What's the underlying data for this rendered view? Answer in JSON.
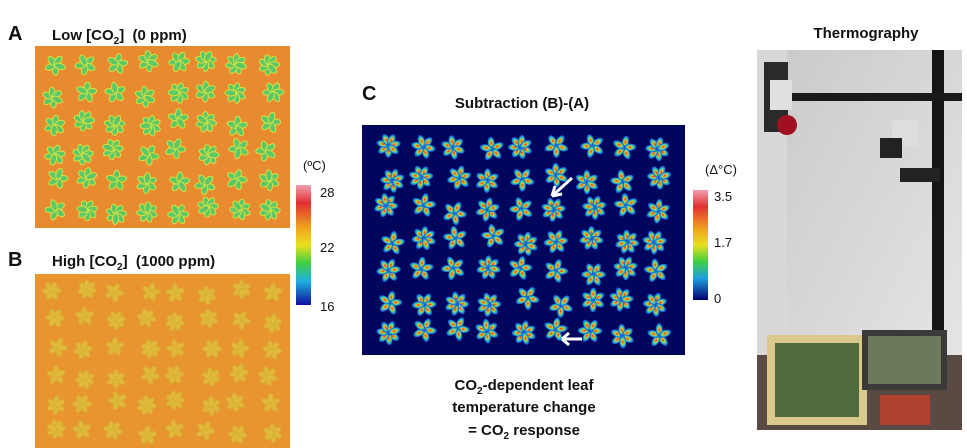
{
  "panels": [
    {
      "letter": "A",
      "title": {
        "pre": "Low [CO",
        "sub": "2",
        "post": "]  (0 ppm)"
      }
    },
    {
      "letter": "B",
      "title": {
        "pre": "High [CO",
        "sub": "2",
        "post": "]  (1000 ppm)"
      }
    },
    {
      "letter": "C",
      "title": "Subtraction (B)-(A)"
    }
  ],
  "colorbars": [
    {
      "unit": "(ºC)",
      "labels": [
        28,
        22,
        16
      ]
    },
    {
      "unit": "(Δ°C)",
      "labels": [
        3.5,
        1.7,
        0
      ]
    }
  ],
  "caption": {
    "line1": {
      "pre": "CO",
      "sub": "2",
      "post": "-dependent leaf"
    },
    "line2": "temperature change",
    "line3": {
      "pre": "= CO",
      "sub": "2",
      "post": " response"
    }
  },
  "photo_title": "Thermography"
}
